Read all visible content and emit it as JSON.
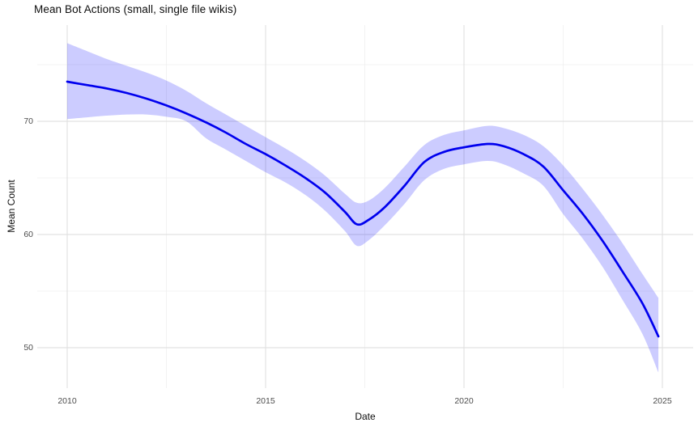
{
  "chart_data": {
    "type": "line",
    "title": "Mean Bot Actions (small, single file wikis)",
    "xlabel": "Date",
    "ylabel": "Mean Count",
    "legend": "none",
    "grid": true,
    "xlim": [
      2009.25,
      2025.8
    ],
    "ylim": [
      46.4,
      78.5
    ],
    "x_ticks": [
      {
        "v": 2010,
        "label": "2010"
      },
      {
        "v": 2015,
        "label": "2015"
      },
      {
        "v": 2020,
        "label": "2020"
      },
      {
        "v": 2025,
        "label": "2025"
      }
    ],
    "y_ticks": [
      {
        "v": 50,
        "label": "50"
      },
      {
        "v": 60,
        "label": "60"
      },
      {
        "v": 70,
        "label": "70"
      }
    ],
    "x_minor_gridlines": [
      2012.5,
      2017.5,
      2022.5
    ],
    "y_minor_gridlines": [
      55,
      65,
      75
    ],
    "series": [
      {
        "name": "mean-bot-actions-smooth",
        "x": [
          2010,
          2010.5,
          2011,
          2011.5,
          2012,
          2012.5,
          2013,
          2013.5,
          2014,
          2014.5,
          2015,
          2015.5,
          2016,
          2016.5,
          2017,
          2017.3,
          2017.6,
          2018,
          2018.5,
          2019,
          2019.5,
          2020,
          2020.6,
          2021,
          2021.5,
          2022,
          2022.5,
          2023,
          2023.5,
          2024,
          2024.5,
          2024.9
        ],
        "y": [
          73.5,
          73.2,
          72.9,
          72.5,
          72.0,
          71.4,
          70.7,
          69.9,
          69.0,
          68.0,
          67.1,
          66.1,
          65.0,
          63.7,
          62.0,
          60.9,
          61.3,
          62.4,
          64.3,
          66.4,
          67.3,
          67.7,
          68.0,
          67.8,
          67.1,
          66.0,
          63.9,
          61.8,
          59.4,
          56.7,
          53.9,
          51.0
        ]
      }
    ],
    "ribbon": {
      "name": "confidence-band",
      "x": [
        2010,
        2010.5,
        2011,
        2011.5,
        2012,
        2012.5,
        2013,
        2013.5,
        2014,
        2014.5,
        2015,
        2015.5,
        2016,
        2016.5,
        2017,
        2017.3,
        2017.6,
        2018,
        2018.5,
        2019,
        2019.5,
        2020,
        2020.6,
        2021,
        2021.5,
        2022,
        2022.5,
        2023,
        2023.5,
        2024,
        2024.5,
        2024.9
      ],
      "upper": [
        76.9,
        76.2,
        75.5,
        74.9,
        74.3,
        73.6,
        72.7,
        71.6,
        70.6,
        69.6,
        68.6,
        67.6,
        66.5,
        65.2,
        63.6,
        62.8,
        63.0,
        64.1,
        66.0,
        67.9,
        68.8,
        69.2,
        69.6,
        69.4,
        68.8,
        67.8,
        66.1,
        64.0,
        61.7,
        59.2,
        56.5,
        54.4
      ],
      "lower": [
        70.2,
        70.35,
        70.5,
        70.6,
        70.6,
        70.4,
        70.0,
        68.5,
        67.5,
        66.5,
        65.5,
        64.6,
        63.5,
        62.1,
        60.3,
        59.0,
        59.5,
        60.8,
        62.7,
        64.8,
        65.8,
        66.2,
        66.5,
        66.2,
        65.4,
        64.3,
        61.8,
        59.6,
        57.1,
        54.2,
        51.2,
        47.8
      ]
    },
    "colors": {
      "line": "#0000EE",
      "ribbon_fill": "#0000FF",
      "ribbon_opacity": 0.2,
      "grid_major": "#E2E2E2",
      "grid_minor": "#EFEFEF",
      "tick_label": "#4D4D4D",
      "text": "#0D0D0D",
      "background": "#FFFFFF"
    }
  }
}
